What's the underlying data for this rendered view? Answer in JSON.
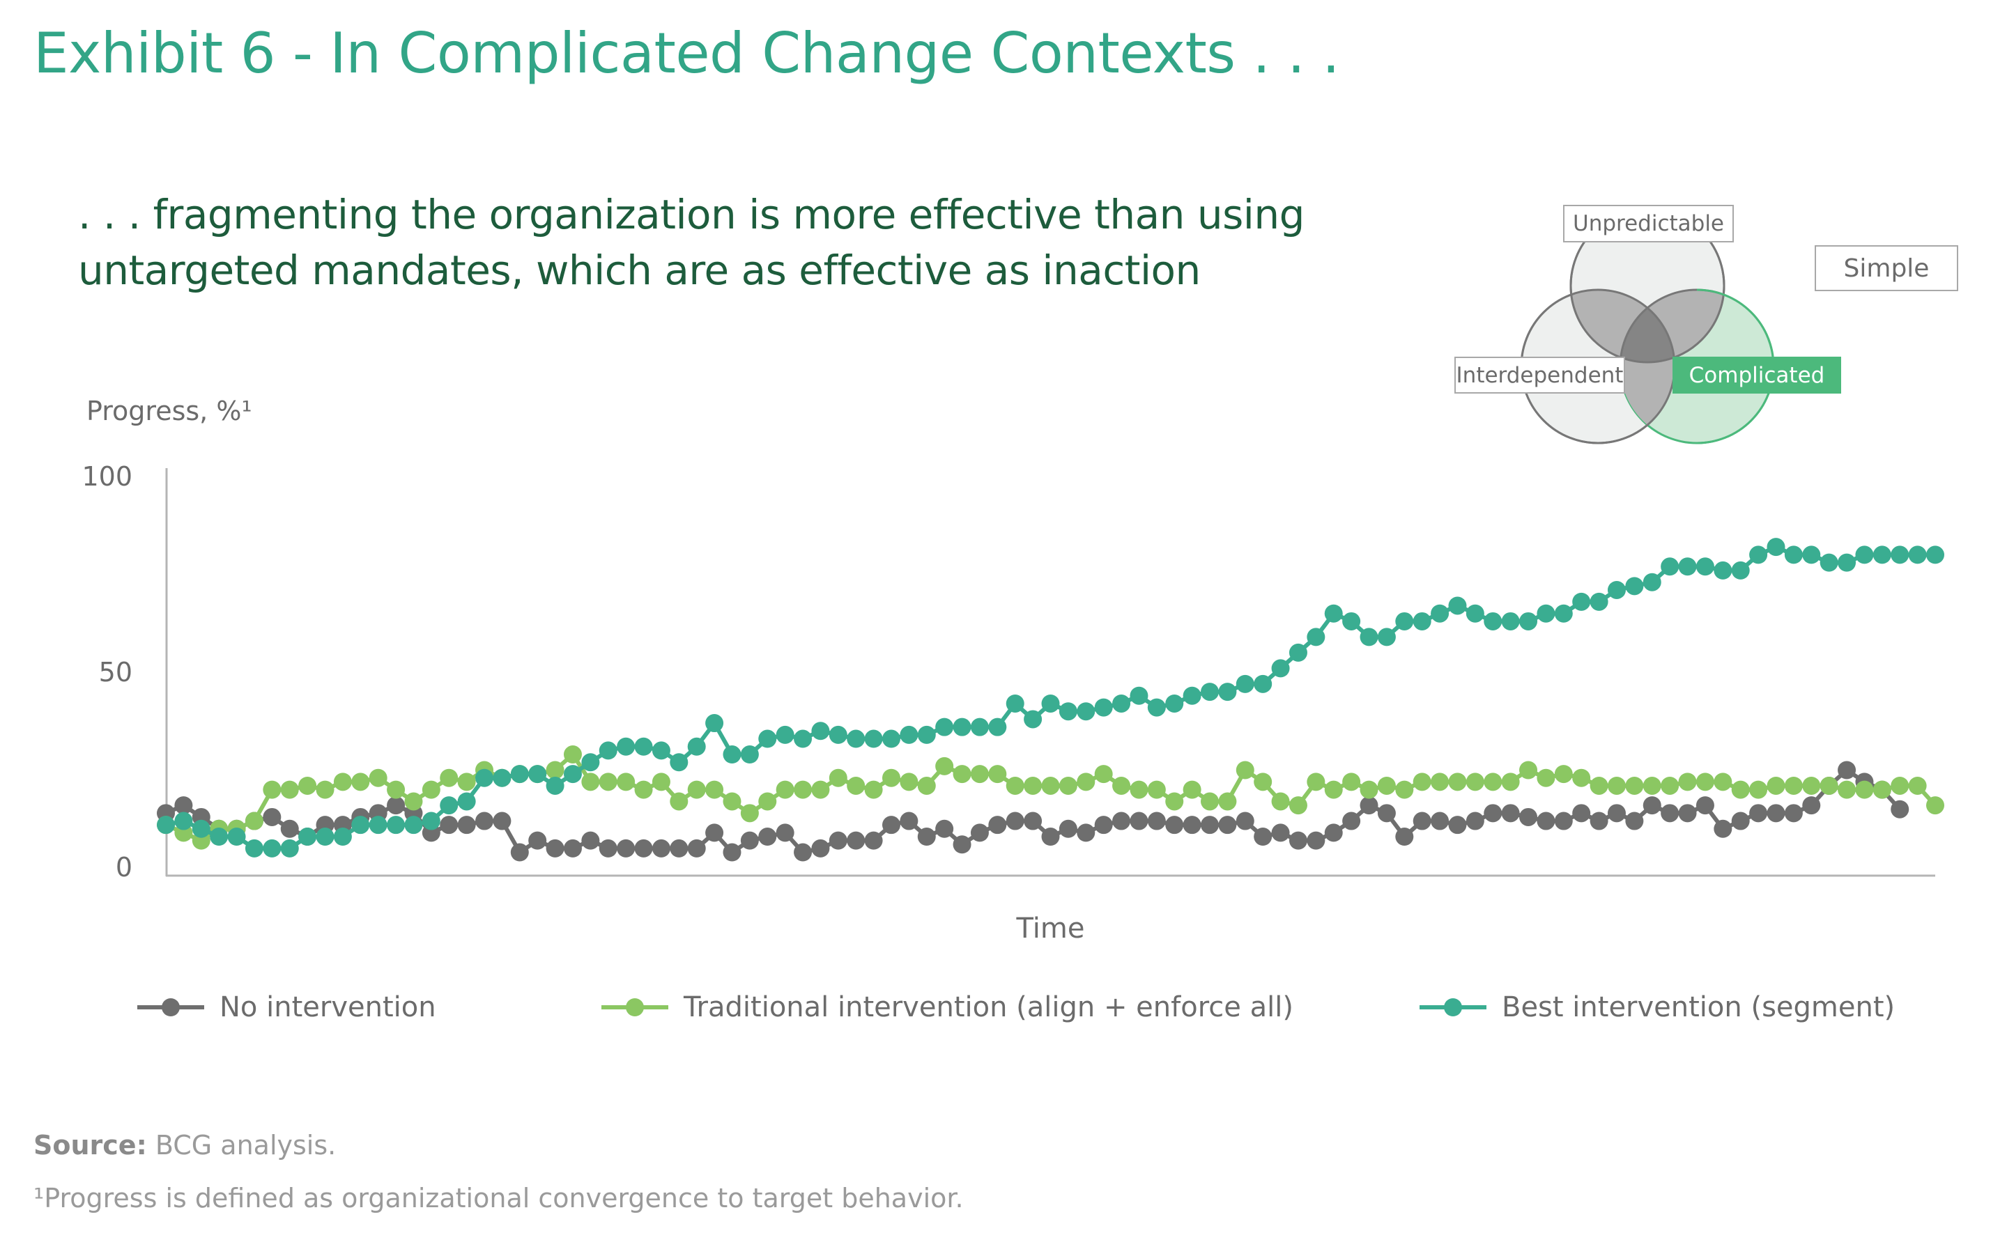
{
  "title": "Exhibit 6 - In Complicated Change Contexts . . .",
  "subtitle": ". . . fragmenting the organization is more effective than using untargeted mandates, which are as effective as inaction",
  "venn": {
    "labels": [
      "Unpredictable",
      "Simple",
      "Interdependent",
      "Complicated"
    ],
    "highlighted": "Complicated",
    "colors": {
      "highlight": "#4cb97c",
      "highlight_fill": "#cde9d6",
      "neutral_fill": "#eef0ef",
      "overlap": "#b3b3b3",
      "center": "#858585"
    }
  },
  "chart_data": {
    "type": "line",
    "title": "",
    "ylabel": "Progress, %¹",
    "xlabel": "Time",
    "ylim": [
      0,
      100
    ],
    "yticks": [
      "0",
      "50",
      "100"
    ],
    "legend_position": "bottom",
    "grid": false,
    "series": [
      {
        "name": "No intervention",
        "color": "#6e6e6e",
        "values": [
          14,
          16,
          13,
          10,
          10,
          12,
          13,
          10,
          8,
          11,
          11,
          13,
          14,
          16,
          14,
          9,
          11,
          11,
          12,
          12,
          4,
          7,
          5,
          5,
          7,
          5,
          5,
          5,
          5,
          5,
          5,
          9,
          4,
          7,
          8,
          9,
          4,
          5,
          7,
          7,
          7,
          11,
          12,
          8,
          10,
          6,
          9,
          11,
          12,
          12,
          8,
          10,
          9,
          11,
          12,
          12,
          12,
          11,
          11,
          11,
          11,
          12,
          8,
          9,
          7,
          7,
          9,
          12,
          16,
          14,
          8,
          12,
          12,
          11,
          12,
          14,
          14,
          13,
          12,
          12,
          14,
          12,
          14,
          12,
          16,
          14,
          14,
          16,
          10,
          12,
          14,
          14,
          14,
          16,
          21,
          25,
          22,
          20,
          15
        ]
      },
      {
        "name": "Traditional intervention (align + enforce all)",
        "color": "#8bc762",
        "values": [
          11,
          9,
          7,
          10,
          10,
          12,
          20,
          20,
          21,
          20,
          22,
          22,
          23,
          20,
          17,
          20,
          23,
          22,
          25,
          23,
          24,
          24,
          25,
          29,
          22,
          22,
          22,
          20,
          22,
          17,
          20,
          20,
          17,
          14,
          17,
          20,
          20,
          20,
          23,
          21,
          20,
          23,
          22,
          21,
          26,
          24,
          24,
          24,
          21,
          21,
          21,
          21,
          22,
          24,
          21,
          20,
          20,
          17,
          20,
          17,
          17,
          25,
          22,
          17,
          16,
          22,
          20,
          22,
          20,
          21,
          20,
          22,
          22,
          22,
          22,
          22,
          22,
          25,
          23,
          24,
          23,
          21,
          21,
          21,
          21,
          21,
          22,
          22,
          22,
          20,
          20,
          21,
          21,
          21,
          21,
          20,
          20,
          20,
          21,
          21,
          16
        ]
      },
      {
        "name": "Best intervention (segment)",
        "color": "#3aad91",
        "values": [
          11,
          12,
          10,
          8,
          8,
          5,
          5,
          5,
          8,
          8,
          8,
          11,
          11,
          11,
          11,
          12,
          16,
          17,
          23,
          23,
          24,
          24,
          21,
          24,
          27,
          30,
          31,
          31,
          30,
          27,
          31,
          37,
          29,
          29,
          33,
          34,
          33,
          35,
          34,
          33,
          33,
          33,
          34,
          34,
          36,
          36,
          36,
          36,
          42,
          38,
          42,
          40,
          40,
          41,
          42,
          44,
          41,
          42,
          44,
          45,
          45,
          47,
          47,
          51,
          55,
          59,
          65,
          63,
          59,
          59,
          63,
          63,
          65,
          67,
          65,
          63,
          63,
          63,
          65,
          65,
          68,
          68,
          71,
          72,
          73,
          77,
          77,
          77,
          76,
          76,
          80,
          82,
          80,
          80,
          78,
          78,
          80,
          80,
          80,
          80,
          80
        ]
      }
    ]
  },
  "source": {
    "label": "Source:",
    "text": " BCG analysis."
  },
  "footnote": "¹Progress is defined as organizational convergence to target behavior."
}
